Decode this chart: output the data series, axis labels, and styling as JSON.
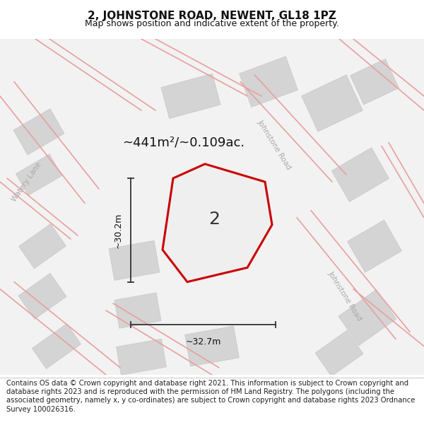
{
  "title": "2, JOHNSTONE ROAD, NEWENT, GL18 1PZ",
  "subtitle": "Map shows position and indicative extent of the property.",
  "footer": "Contains OS data © Crown copyright and database right 2021. This information is subject to Crown copyright and database rights 2023 and is reproduced with the permission of HM Land Registry. The polygons (including the associated geometry, namely x, y co-ordinates) are subject to Crown copyright and database rights 2023 Ordnance Survey 100026316.",
  "area_label": "~441m²/~0.109ac.",
  "dim_h": "~32.7m",
  "dim_v": "~30.2m",
  "property_label": "2",
  "bg_color": "#f5f5f5",
  "map_bg": "#f0f0f0",
  "building_color": "#d8d8d8",
  "building_edge": "#cccccc",
  "road_line_color": "#e8a0a0",
  "property_edge": "#cc0000",
  "property_fill": "#f0f0f0",
  "dim_line_color": "#333333",
  "road_label_color": "#888888",
  "title_fontsize": 11,
  "subtitle_fontsize": 9,
  "footer_fontsize": 7.2,
  "figsize": [
    6.0,
    6.25
  ],
  "dpi": 100
}
